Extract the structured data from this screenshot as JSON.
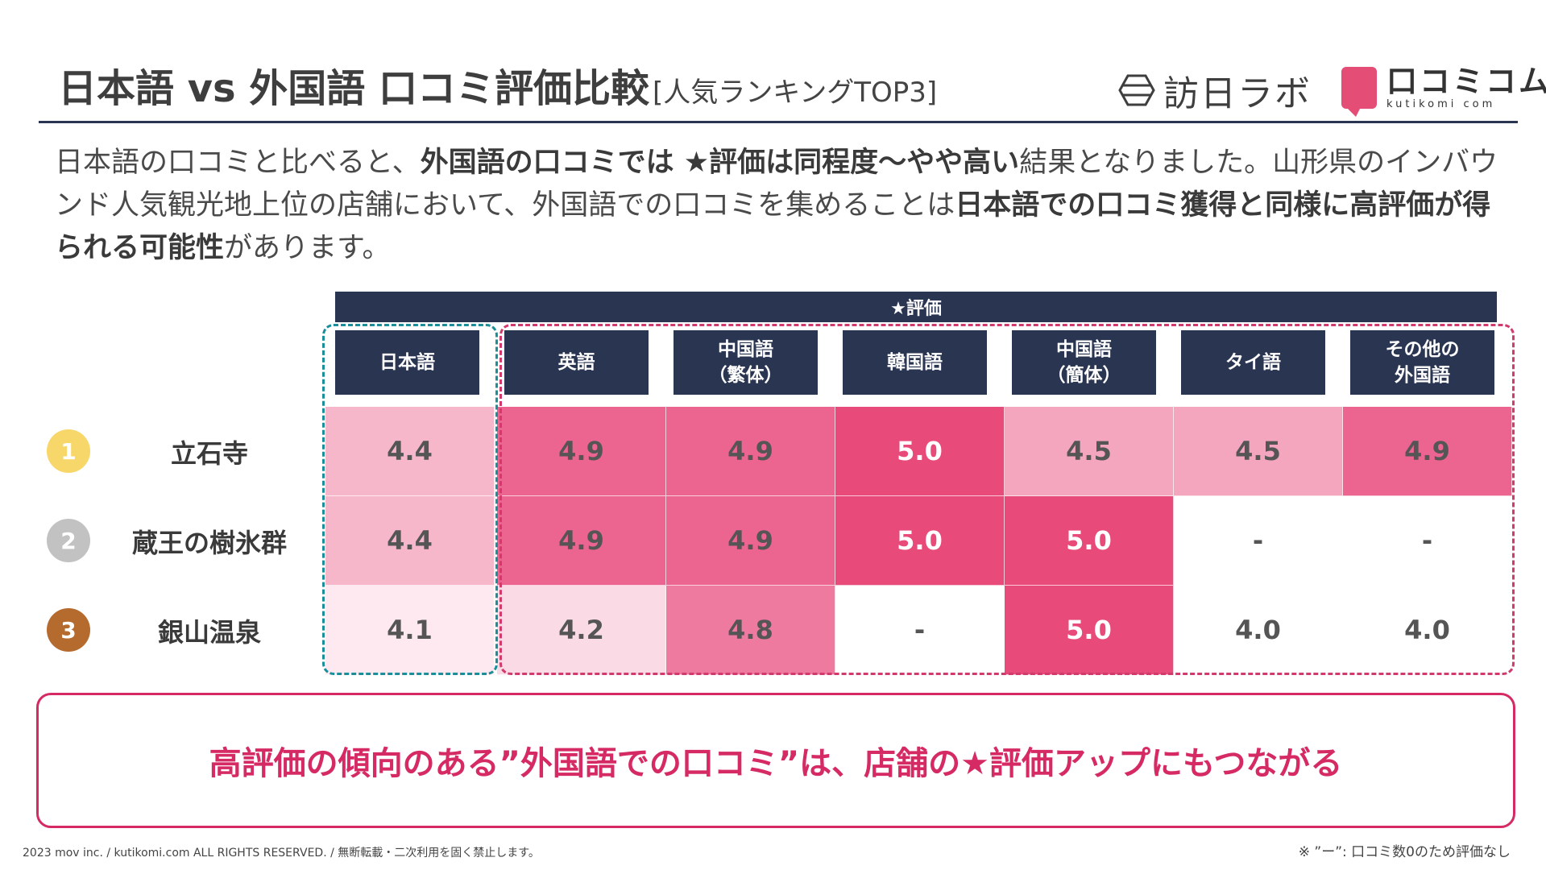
{
  "header": {
    "title": "日本語 vs 外国語 口コミ評価比較",
    "subtitle": "[人気ランキングTOP3]"
  },
  "logos": {
    "hounichi": "訪日ラボ",
    "kutikomi_jp": "口コミコム",
    "kutikomi_en": "kutikomi com"
  },
  "description": {
    "p1": "日本語の口コミと比べると、",
    "b1": "外国語の口コミでは ★評価は同程度〜やや高い",
    "p2": "結果となりました。山形県のインバウンド人気観光地上位の店舗において、外国語での口コミを集めることは",
    "b2": "日本語での口コミ獲得と同様に高評価が得られる可能性",
    "p3": "があります。"
  },
  "table": {
    "group_header": "★評価",
    "columns": [
      {
        "line1": "日本語",
        "line2": ""
      },
      {
        "line1": "英語",
        "line2": ""
      },
      {
        "line1": "中国語",
        "line2": "（繁体）"
      },
      {
        "line1": "韓国語",
        "line2": ""
      },
      {
        "line1": "中国語",
        "line2": "（簡体）"
      },
      {
        "line1": "タイ語",
        "line2": ""
      },
      {
        "line1": "その他の",
        "line2": "外国語"
      }
    ],
    "rows": [
      {
        "rank": "1",
        "rank_color": "#f7d76a",
        "name": "立石寺",
        "values": [
          "4.4",
          "4.9",
          "4.9",
          "5.0",
          "4.5",
          "4.5",
          "4.9"
        ]
      },
      {
        "rank": "2",
        "rank_color": "#c2c2c2",
        "name": "蔵王の樹氷群",
        "values": [
          "4.4",
          "4.9",
          "4.9",
          "5.0",
          "5.0",
          "-",
          "-"
        ]
      },
      {
        "rank": "3",
        "rank_color": "#b56a2e",
        "name": "銀山温泉",
        "values": [
          "4.1",
          "4.2",
          "4.8",
          "-",
          "5.0",
          "4.0",
          "4.0"
        ]
      }
    ]
  },
  "colors": {
    "navy": "#2a3552",
    "accent": "#d52a63",
    "teal": "#1a8f9a"
  },
  "callout": "高評価の傾向のある”外国語での口コミ”は、店舗の★評価アップにもつながる",
  "footer": {
    "copyright": "2023 mov inc. / kutikomi.com ALL RIGHTS RESERVED. / 無断転載・二次利用を固く禁止します。",
    "note": "※ ”ー”: 口コミ数0のため評価なし"
  }
}
